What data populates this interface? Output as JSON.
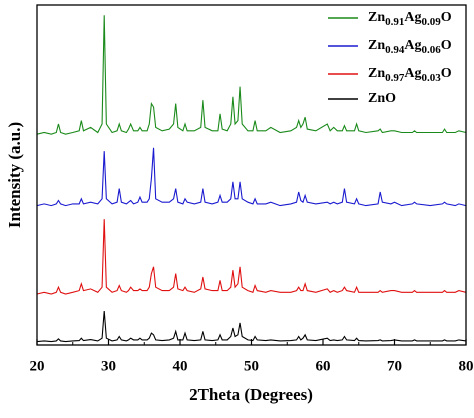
{
  "chart_data": {
    "type": "line",
    "x_label": "2Theta (Degrees)",
    "y_label": "Intensity (a.u.)",
    "xlim": [
      20,
      80
    ],
    "xticks": [
      20,
      30,
      40,
      50,
      60,
      70,
      80
    ],
    "ylim": [
      0,
      100
    ],
    "legend": "upper right",
    "x": [
      20,
      21,
      22,
      22.7,
      23,
      23.3,
      24,
      25,
      25.9,
      26.2,
      26.5,
      27.5,
      28.5,
      29.1,
      29.4,
      29.7,
      30.5,
      31.2,
      31.5,
      31.8,
      32.5,
      32.8,
      33.1,
      33.5,
      34.1,
      34.4,
      34.7,
      35.4,
      35.7,
      36.0,
      36.3,
      36.6,
      37.5,
      38.5,
      39.1,
      39.4,
      39.7,
      40.4,
      40.7,
      41,
      42,
      42.9,
      43.2,
      43.5,
      44.5,
      45.3,
      45.6,
      45.9,
      46.6,
      47.1,
      47.4,
      47.7,
      48.1,
      48.4,
      48.7,
      49.5,
      50.2,
      50.5,
      50.8,
      52,
      52.7,
      54,
      55.5,
      56.3,
      56.6,
      56.9,
      57.2,
      57.5,
      57.8,
      59,
      60.6,
      61,
      61.5,
      62,
      62.7,
      63,
      63.3,
      64.4,
      64.7,
      65,
      66,
      67.7,
      68,
      68.3,
      69.5,
      70,
      71,
      72.5,
      72.8,
      73.1,
      75,
      76.7,
      77,
      77.3,
      78.5,
      79,
      80
    ],
    "series": [
      {
        "name": "Zn0.91Ag0.09O",
        "color": "#1a8a1a",
        "values": [
          62,
          62.5,
          62,
          62.5,
          65,
          62.5,
          62,
          62.5,
          63,
          66,
          63,
          64,
          62.5,
          65,
          97,
          65,
          62.5,
          63,
          65,
          63,
          62.5,
          63.5,
          65,
          63,
          63,
          64,
          63,
          63,
          65,
          71,
          70,
          64,
          63,
          63.5,
          65,
          71,
          64,
          63,
          65,
          63,
          63,
          64,
          72,
          64,
          63,
          63,
          68,
          63.5,
          63,
          65,
          73,
          65,
          66,
          76,
          65,
          63,
          63,
          66,
          63,
          63,
          64,
          62.5,
          63,
          64,
          66,
          64,
          65,
          67,
          63.5,
          63,
          65,
          63,
          64,
          63,
          63,
          64.5,
          63,
          63,
          65,
          63,
          62.5,
          63,
          63.5,
          62.5,
          63,
          63,
          62.5,
          62.5,
          63,
          62.5,
          62.5,
          62.5,
          63.5,
          62.5,
          62.5,
          63,
          62.5
        ]
      },
      {
        "name": "Zn0.94Ag0.06O",
        "color": "#1a1ad0",
        "values": [
          41,
          41.5,
          41,
          41.5,
          42.5,
          41.5,
          41,
          41.5,
          41.5,
          43,
          41.5,
          42,
          41.5,
          43,
          57,
          43,
          41.5,
          42,
          46,
          42,
          41.5,
          42,
          42.5,
          41.5,
          42,
          43.5,
          42,
          42,
          43,
          49,
          58,
          43,
          42,
          42,
          43,
          46,
          42,
          41.5,
          43,
          42,
          41.5,
          42,
          46,
          42,
          41.5,
          42,
          44,
          42,
          42,
          43,
          48,
          43,
          43,
          48,
          43,
          42,
          41.5,
          43,
          41.5,
          41.5,
          42,
          41,
          41.5,
          42,
          45,
          42.5,
          42,
          44,
          42,
          41.5,
          42,
          41.5,
          42,
          41.5,
          42,
          46,
          42,
          41.5,
          43,
          41.5,
          41,
          41.5,
          45,
          42,
          41.5,
          42,
          41,
          41.5,
          42,
          41.5,
          41,
          41.5,
          42,
          41.5,
          41,
          41.5,
          41
        ]
      },
      {
        "name": "Zn0.97Ag0.03O",
        "color": "#e01010",
        "values": [
          15,
          15.5,
          15,
          15.5,
          17,
          15.5,
          15,
          15.5,
          16,
          18,
          16,
          16.5,
          15.5,
          17,
          37,
          17,
          15.5,
          16,
          17.5,
          16,
          15.5,
          16,
          17,
          16,
          16,
          16.5,
          16,
          16,
          17,
          21,
          23,
          17,
          16,
          16,
          17,
          21,
          16.5,
          16,
          17,
          16,
          15.5,
          16.5,
          20,
          16.5,
          16,
          16,
          19,
          16,
          16,
          17,
          22,
          17,
          18,
          23,
          17,
          16,
          15.5,
          17.5,
          16,
          15.5,
          16,
          15.5,
          15.5,
          16,
          17,
          16,
          16,
          18,
          16,
          15.5,
          16.5,
          15.5,
          16,
          15.5,
          16,
          17,
          16,
          15.5,
          17,
          15.5,
          15.5,
          15.5,
          16,
          15.5,
          16,
          16,
          15.5,
          15.5,
          16,
          15.5,
          15.5,
          15.5,
          16,
          15.5,
          15.5,
          16,
          15.5
        ]
      },
      {
        "name": "ZnO",
        "color": "#000000",
        "values": [
          1,
          1.2,
          1,
          1.2,
          1.8,
          1.2,
          1,
          1.2,
          1.3,
          2,
          1.3,
          1.6,
          1.2,
          2,
          10,
          2,
          1.2,
          1.5,
          2.5,
          1.5,
          1.2,
          1.5,
          2,
          1.5,
          1.5,
          2,
          1.5,
          1.5,
          2,
          3.5,
          3,
          1.5,
          1.3,
          1.5,
          2,
          4,
          1.5,
          1.5,
          3.5,
          1.5,
          1.3,
          1.5,
          4,
          1.5,
          1.3,
          1.5,
          3,
          1.5,
          1.5,
          2.5,
          5,
          2.5,
          3,
          6.5,
          2.5,
          1.5,
          1.3,
          2.5,
          1.5,
          1.3,
          1.5,
          1.2,
          1.3,
          1.5,
          2.5,
          1.5,
          2,
          3,
          1.5,
          1.3,
          2,
          1.3,
          1.5,
          1.3,
          1.5,
          2.5,
          1.5,
          1.3,
          2,
          1.3,
          1.2,
          1.3,
          1.5,
          1.2,
          1.3,
          1.5,
          1.2,
          1.2,
          1.5,
          1.2,
          1.2,
          1.2,
          1.5,
          1.2,
          1.2,
          1.5,
          1.2
        ]
      }
    ]
  }
}
